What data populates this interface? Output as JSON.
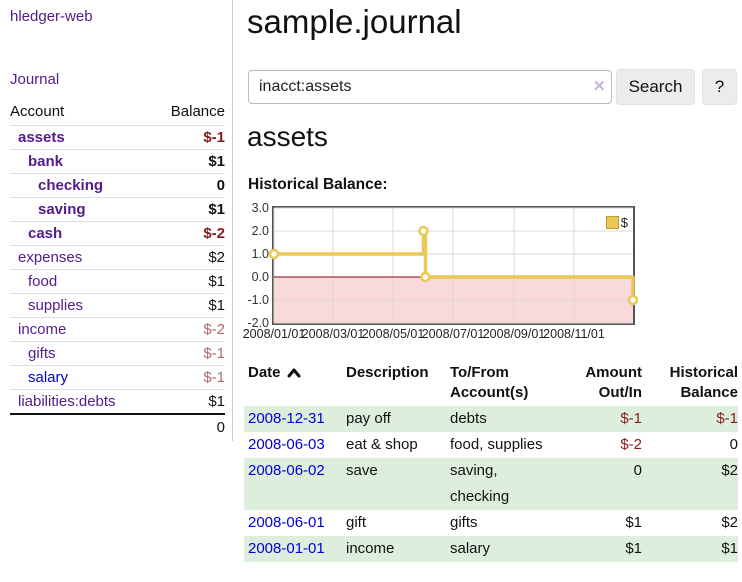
{
  "sidebar": {
    "brand": "hledger-web",
    "nav": {
      "journal_label": "Journal"
    },
    "accounts_table": {
      "headers": {
        "account": "Account",
        "balance": "Balance"
      },
      "rows": [
        {
          "label": "assets",
          "balance": "$-1",
          "level": 1,
          "bold": true,
          "balance_color": "strong"
        },
        {
          "label": "bank",
          "balance": "$1",
          "level": 2,
          "bold": true,
          "balance_color": "normal"
        },
        {
          "label": "checking",
          "balance": "0",
          "level": 3,
          "bold": true,
          "balance_color": "normal"
        },
        {
          "label": "saving",
          "balance": "$1",
          "level": 3,
          "bold": true,
          "balance_color": "normal"
        },
        {
          "label": "cash",
          "balance": "$-2",
          "level": 2,
          "bold": true,
          "balance_color": "strong"
        },
        {
          "label": "expenses",
          "balance": "$2",
          "level": 1,
          "bold": false,
          "balance_color": "normal"
        },
        {
          "label": "food",
          "balance": "$1",
          "level": 2,
          "bold": false,
          "balance_color": "normal"
        },
        {
          "label": "supplies",
          "balance": "$1",
          "level": 2,
          "bold": false,
          "balance_color": "normal"
        },
        {
          "label": "income",
          "balance": "$-2",
          "level": 1,
          "bold": false,
          "balance_color": "soft"
        },
        {
          "label": "gifts",
          "balance": "$-1",
          "level": 2,
          "bold": false,
          "balance_color": "soft"
        },
        {
          "label": "salary",
          "balance": "$-1",
          "level": 2,
          "bold": false,
          "balance_color": "soft",
          "label_color": "blue"
        },
        {
          "label": "liabilities:debts",
          "balance": "$1",
          "level": 1,
          "bold": false,
          "balance_color": "normal"
        }
      ],
      "total": "0"
    }
  },
  "main": {
    "title": "sample.journal",
    "search": {
      "value": "inacct:assets",
      "clear_icon": "✕",
      "button_label": "Search",
      "help_label": "?"
    },
    "account_heading": "assets",
    "chart_label": "Historical Balance:"
  },
  "chart_data": {
    "type": "line",
    "step": "before",
    "title": "Historical Balance of assets",
    "x_type": "date",
    "x_range": [
      "2008-01-01",
      "2008-12-31"
    ],
    "x_ticks": [
      {
        "date": "2008-01-01",
        "label": "2008/01/01"
      },
      {
        "date": "2008-03-01",
        "label": "2008/03/01"
      },
      {
        "date": "2008-05-01",
        "label": "2008/05/01"
      },
      {
        "date": "2008-07-01",
        "label": "2008/07/01"
      },
      {
        "date": "2008-09-01",
        "label": "2008/09/01"
      },
      {
        "date": "2008-11-01",
        "label": "2008/11/01"
      }
    ],
    "ylim": [
      -2,
      3
    ],
    "y_ticks": [
      {
        "v": 3,
        "label": "3.0"
      },
      {
        "v": 2,
        "label": "2.0"
      },
      {
        "v": 1,
        "label": "1.0"
      },
      {
        "v": 0,
        "label": "0.0"
      },
      {
        "v": -1,
        "label": "-1.0"
      },
      {
        "v": -2,
        "label": "-2.0"
      }
    ],
    "grid": true,
    "zero_line_color": "#7a0d0d",
    "negative_region_fill": "#f9d9d9",
    "legend": {
      "position": "top-right",
      "entries": [
        {
          "label": "$",
          "color": "#e9c857"
        }
      ]
    },
    "series": [
      {
        "name": "$",
        "color": "#e9c857",
        "marker": "open-circle",
        "points": [
          {
            "x": "2008-01-01",
            "y": 1
          },
          {
            "x": "2008-06-01",
            "y": 2
          },
          {
            "x": "2008-06-03",
            "y": 0
          },
          {
            "x": "2008-12-31",
            "y": -1
          }
        ]
      }
    ]
  },
  "register_table": {
    "headers": {
      "date": "Date",
      "description": "Description",
      "accounts": "To/From Account(s)",
      "amount": "Amount Out/In",
      "balance": "Historical Balance"
    },
    "sort": {
      "column": "date",
      "direction": "asc"
    },
    "rows": [
      {
        "date": "2008-12-31",
        "description": "pay off",
        "accounts": "debts",
        "amount": "$-1",
        "amount_negative": true,
        "balance": "$-1",
        "balance_negative": true
      },
      {
        "date": "2008-06-03",
        "description": "eat & shop",
        "accounts": "food, supplies",
        "amount": "$-2",
        "amount_negative": true,
        "balance": "0",
        "balance_negative": false
      },
      {
        "date": "2008-06-02",
        "description": "save",
        "accounts": "saving, checking",
        "amount": "0",
        "amount_negative": false,
        "balance": "$2",
        "balance_negative": false
      },
      {
        "date": "2008-06-01",
        "description": "gift",
        "accounts": "gifts",
        "amount": "$1",
        "amount_negative": false,
        "balance": "$2",
        "balance_negative": false
      },
      {
        "date": "2008-01-01",
        "description": "income",
        "accounts": "salary",
        "amount": "$1",
        "amount_negative": false,
        "balance": "$1",
        "balance_negative": false
      }
    ]
  }
}
